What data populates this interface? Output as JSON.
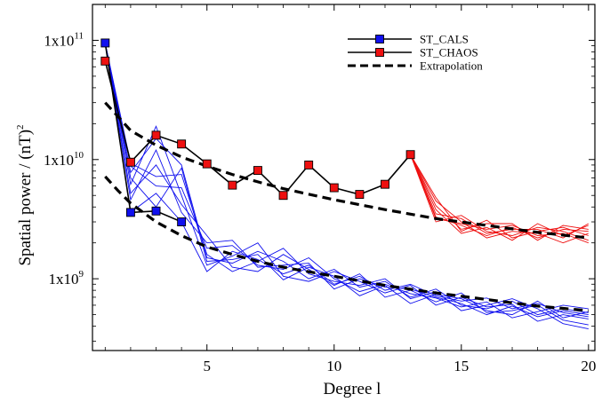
{
  "chart_data": {
    "type": "line",
    "xlabel": "Degree l",
    "ylabel": "Spatial power / (nT)",
    "ylabel_sup": "2",
    "y_scale": "log",
    "xlim": [
      0.5,
      20.25
    ],
    "ylim": [
      250000000,
      200000000000
    ],
    "x_ticks": [
      5,
      10,
      15,
      20
    ],
    "x_tick_labels": [
      "5",
      "10",
      "15",
      "20"
    ],
    "y_ticks": [
      {
        "value": 1000000000,
        "base": "1x10",
        "exp": "9"
      },
      {
        "value": 10000000000,
        "base": "1x10",
        "exp": "10"
      },
      {
        "value": 100000000000,
        "base": "1x10",
        "exp": "11"
      }
    ],
    "legend_position": "top-right",
    "legend": [
      {
        "label": "ST_CALS",
        "marker": "square",
        "color": "#1010ee"
      },
      {
        "label": "ST_CHAOS",
        "marker": "square",
        "color": "#ee1010"
      },
      {
        "label": "Extrapolation",
        "style": "dashed",
        "color": "#000000"
      }
    ],
    "series": [
      {
        "name": "ST_CALS",
        "color": "#1010ee",
        "x": [
          1,
          2,
          3,
          4
        ],
        "y": [
          95000000000,
          3600000000,
          3700000000,
          3000000000
        ]
      },
      {
        "name": "ST_CHAOS",
        "color": "#ee1010",
        "x": [
          1,
          2,
          3,
          4,
          5,
          6,
          7,
          8,
          9,
          10,
          11,
          12,
          13
        ],
        "y": [
          67000000000,
          9500000000,
          16000000000,
          13500000000,
          9200000000,
          6100000000,
          8100000000,
          5000000000,
          9000000000,
          5800000000,
          5100000000,
          6200000000,
          11000000000
        ]
      },
      {
        "name": "Extrapolation",
        "style": "dashed",
        "color": "#000000",
        "x": [
          1,
          1.5,
          2,
          3,
          4,
          5,
          6,
          7,
          8,
          10,
          12,
          14,
          16,
          18,
          20
        ],
        "y": [
          30000000000,
          23000000000,
          17500000000,
          13200000000,
          10500000000,
          8800000000,
          7500000000,
          6500000000,
          5700000000,
          4600000000,
          3800000000,
          3200000000,
          2800000000,
          2450000000,
          2200000000
        ]
      },
      {
        "style": "dashed",
        "color": "#000000",
        "x": [
          1,
          1.5,
          2,
          3,
          4,
          5,
          6,
          7,
          8,
          10,
          12,
          14,
          16,
          18,
          20
        ],
        "y": [
          7200000000,
          5500000000,
          4300000000,
          3000000000,
          2300000000,
          1850000000,
          1600000000,
          1400000000,
          1250000000,
          1050000000,
          880000000,
          760000000,
          670000000,
          590000000,
          540000000
        ]
      }
    ],
    "ensembles": [
      {
        "color": "#1010ee",
        "x": [
          1,
          2,
          3,
          4,
          5,
          6,
          7,
          8,
          9,
          10,
          11,
          12,
          13,
          14,
          15,
          16,
          17,
          18,
          19,
          20
        ],
        "members": [
          [
            95000000000,
            3600000000,
            5200000000,
            3000000000,
            1150000000,
            1700000000,
            1450000000,
            1100000000,
            1300000000,
            900000000,
            1050000000,
            800000000,
            900000000,
            720000000,
            650000000,
            690000000,
            560000000,
            620000000,
            520000000,
            480000000
          ],
          [
            95000000000,
            7800000000,
            15000000000,
            9000000000,
            1500000000,
            1350000000,
            1700000000,
            1400000000,
            1000000000,
            1200000000,
            850000000,
            950000000,
            700000000,
            820000000,
            600000000,
            560000000,
            650000000,
            500000000,
            560000000,
            520000000
          ],
          [
            95000000000,
            5200000000,
            9000000000,
            4200000000,
            2300000000,
            1250000000,
            1150000000,
            1600000000,
            1200000000,
            880000000,
            1100000000,
            700000000,
            800000000,
            640000000,
            760000000,
            520000000,
            540000000,
            600000000,
            450000000,
            410000000
          ],
          [
            95000000000,
            8800000000,
            6000000000,
            5800000000,
            1800000000,
            1900000000,
            1300000000,
            1200000000,
            1500000000,
            1000000000,
            780000000,
            900000000,
            750000000,
            690000000,
            580000000,
            640000000,
            470000000,
            530000000,
            600000000,
            560000000
          ],
          [
            95000000000,
            6200000000,
            19000000000,
            5000000000,
            1300000000,
            1550000000,
            2000000000,
            1050000000,
            950000000,
            1150000000,
            950000000,
            760000000,
            880000000,
            600000000,
            700000000,
            580000000,
            610000000,
            440000000,
            500000000,
            460000000
          ],
          [
            95000000000,
            9300000000,
            7200000000,
            7500000000,
            1600000000,
            1150000000,
            1400000000,
            1800000000,
            1100000000,
            950000000,
            880000000,
            1000000000,
            680000000,
            780000000,
            540000000,
            600000000,
            680000000,
            560000000,
            420000000,
            380000000
          ],
          [
            95000000000,
            4600000000,
            12000000000,
            3600000000,
            2000000000,
            2100000000,
            1250000000,
            1300000000,
            1350000000,
            820000000,
            1000000000,
            850000000,
            820000000,
            700000000,
            620000000,
            500000000,
            590000000,
            480000000,
            540000000,
            500000000
          ],
          [
            95000000000,
            7000000000,
            4000000000,
            8500000000,
            1400000000,
            1450000000,
            1600000000,
            980000000,
            1250000000,
            1050000000,
            720000000,
            880000000,
            620000000,
            740000000,
            680000000,
            540000000,
            500000000,
            650000000,
            470000000,
            530000000
          ]
        ]
      },
      {
        "color": "#ee1010",
        "x": [
          13,
          14,
          15,
          16,
          17,
          18,
          19,
          20
        ],
        "members": [
          [
            11000000000,
            3300000000,
            2800000000,
            2300000000,
            2700000000,
            2200000000,
            2600000000,
            2500000000
          ],
          [
            11000000000,
            3800000000,
            2400000000,
            2700000000,
            2100000000,
            2900000000,
            2300000000,
            2800000000
          ],
          [
            11000000000,
            4500000000,
            3000000000,
            2200000000,
            2500000000,
            2400000000,
            2000000000,
            2400000000
          ],
          [
            11000000000,
            3000000000,
            3400000000,
            2500000000,
            2300000000,
            2700000000,
            2500000000,
            2100000000
          ],
          [
            11000000000,
            4100000000,
            2600000000,
            2900000000,
            2900000000,
            2100000000,
            2800000000,
            2600000000
          ],
          [
            11000000000,
            3500000000,
            3200000000,
            2400000000,
            2600000000,
            2600000000,
            2200000000,
            2900000000
          ],
          [
            11000000000,
            4800000000,
            2500000000,
            3100000000,
            2200000000,
            2500000000,
            2700000000,
            2300000000
          ],
          [
            11000000000,
            3200000000,
            2900000000,
            2600000000,
            2800000000,
            2300000000,
            2400000000,
            2000000000
          ]
        ]
      }
    ]
  }
}
